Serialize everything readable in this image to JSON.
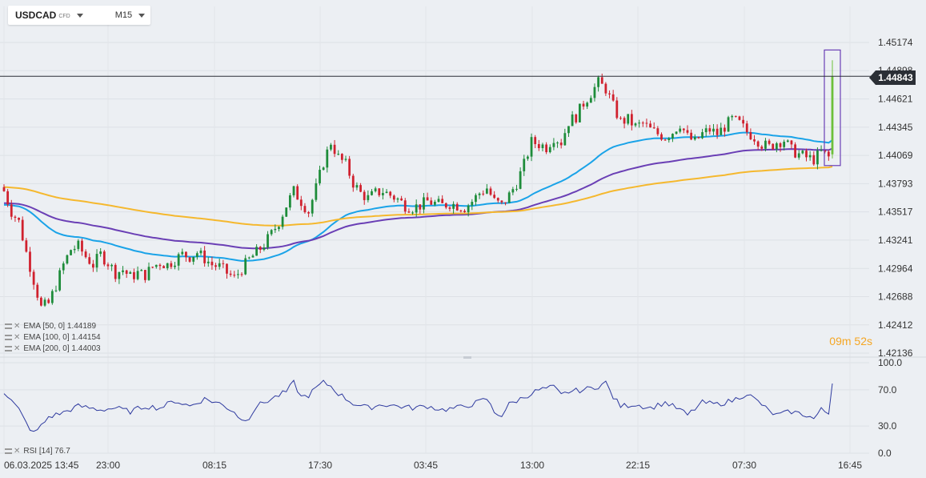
{
  "header": {
    "symbol": "USDCAD",
    "symbol_type": "CFD",
    "timeframe": "M15"
  },
  "current_price": "1.44843",
  "timer": {
    "minutes": "09",
    "m_label": "m",
    "seconds": "52",
    "s_label": "s"
  },
  "indicators": [
    {
      "label": "EMA [50, 0] 1.44189",
      "color": "#1aa3e8"
    },
    {
      "label": "EMA [100, 0] 1.44154",
      "color": "#6a3fb5"
    },
    {
      "label": "EMA [200, 0] 1.44003",
      "color": "#f5b82e"
    }
  ],
  "rsi_label": "RSI [14] 76.7",
  "colors": {
    "bull": "#1e8c3a",
    "bear": "#d0212e",
    "rsi": "#2e3a9f",
    "highlight": "#6a3fb5",
    "last_candle": "#6cc03a"
  },
  "chart_data": [
    {
      "type": "candlestick",
      "y_axis_ticks": [
        "1.45174",
        "1.44898",
        "1.44621",
        "1.44345",
        "1.44069",
        "1.43793",
        "1.43517",
        "1.43241",
        "1.42964",
        "1.42688",
        "1.42412",
        "1.42136"
      ],
      "ylim": [
        1.42136,
        1.45174
      ],
      "x_tick_labels": [
        "06.03.2025  13:45",
        "23:00",
        "08:15",
        "17:30",
        "03:45",
        "13:00",
        "22:15",
        "07:30",
        "16:45"
      ],
      "anchors": [
        [
          0,
          1.4372
        ],
        [
          2,
          1.4352
        ],
        [
          4,
          1.4342
        ],
        [
          6,
          1.4312
        ],
        [
          8,
          1.4285
        ],
        [
          10,
          1.4258
        ],
        [
          12,
          1.4262
        ],
        [
          14,
          1.428
        ],
        [
          16,
          1.43
        ],
        [
          18,
          1.4315
        ],
        [
          20,
          1.4318
        ],
        [
          22,
          1.4308
        ],
        [
          24,
          1.43
        ],
        [
          26,
          1.431
        ],
        [
          28,
          1.4302
        ],
        [
          30,
          1.4292
        ],
        [
          32,
          1.4295
        ],
        [
          34,
          1.4288
        ],
        [
          36,
          1.4292
        ],
        [
          38,
          1.429
        ],
        [
          40,
          1.4298
        ],
        [
          42,
          1.4302
        ],
        [
          44,
          1.43
        ],
        [
          46,
          1.4305
        ],
        [
          48,
          1.431
        ],
        [
          50,
          1.4308
        ],
        [
          52,
          1.4312
        ],
        [
          54,
          1.4306
        ],
        [
          56,
          1.43
        ],
        [
          58,
          1.4298
        ],
        [
          60,
          1.4292
        ],
        [
          62,
          1.4287
        ],
        [
          64,
          1.4296
        ],
        [
          66,
          1.4305
        ],
        [
          68,
          1.4312
        ],
        [
          70,
          1.432
        ],
        [
          72,
          1.433
        ],
        [
          74,
          1.4342
        ],
        [
          76,
          1.4358
        ],
        [
          78,
          1.4372
        ],
        [
          80,
          1.4362
        ],
        [
          82,
          1.4352
        ],
        [
          84,
          1.4375
        ],
        [
          86,
          1.44
        ],
        [
          88,
          1.442
        ],
        [
          90,
          1.4405
        ],
        [
          92,
          1.4398
        ],
        [
          94,
          1.438
        ],
        [
          96,
          1.437
        ],
        [
          98,
          1.4365
        ],
        [
          100,
          1.437
        ],
        [
          102,
          1.4372
        ],
        [
          104,
          1.4368
        ],
        [
          106,
          1.4364
        ],
        [
          108,
          1.4358
        ],
        [
          110,
          1.4356
        ],
        [
          112,
          1.4358
        ],
        [
          114,
          1.4362
        ],
        [
          116,
          1.436
        ],
        [
          118,
          1.4358
        ],
        [
          120,
          1.436
        ],
        [
          122,
          1.4358
        ],
        [
          124,
          1.4356
        ],
        [
          126,
          1.4362
        ],
        [
          128,
          1.437
        ],
        [
          130,
          1.4375
        ],
        [
          132,
          1.4362
        ],
        [
          134,
          1.4358
        ],
        [
          136,
          1.4368
        ],
        [
          138,
          1.438
        ],
        [
          140,
          1.4398
        ],
        [
          142,
          1.442
        ],
        [
          144,
          1.4418
        ],
        [
          146,
          1.4415
        ],
        [
          148,
          1.4425
        ],
        [
          150,
          1.442
        ],
        [
          152,
          1.444
        ],
        [
          154,
          1.4445
        ],
        [
          156,
          1.4458
        ],
        [
          158,
          1.4468
        ],
        [
          160,
          1.4478
        ],
        [
          162,
          1.4472
        ],
        [
          164,
          1.4455
        ],
        [
          166,
          1.444
        ],
        [
          168,
          1.4442
        ],
        [
          170,
          1.4435
        ],
        [
          172,
          1.4438
        ],
        [
          174,
          1.4432
        ],
        [
          176,
          1.4428
        ],
        [
          178,
          1.4425
        ],
        [
          180,
          1.443
        ],
        [
          182,
          1.4438
        ],
        [
          184,
          1.4425
        ],
        [
          186,
          1.442
        ],
        [
          188,
          1.4428
        ],
        [
          190,
          1.4432
        ],
        [
          192,
          1.4428
        ],
        [
          194,
          1.4435
        ],
        [
          196,
          1.4442
        ],
        [
          198,
          1.4438
        ],
        [
          200,
          1.443
        ],
        [
          202,
          1.4425
        ],
        [
          204,
          1.4418
        ],
        [
          206,
          1.4415
        ],
        [
          208,
          1.442
        ],
        [
          210,
          1.4422
        ],
        [
          212,
          1.4412
        ],
        [
          214,
          1.4408
        ],
        [
          216,
          1.4405
        ],
        [
          218,
          1.4403
        ],
        [
          220,
          1.441
        ],
        [
          222,
          1.4405
        ],
        [
          223,
          1.4482
        ]
      ]
    },
    {
      "type": "line",
      "title": "",
      "y_axis_ticks": [
        "100.0",
        "70.0",
        "30.0",
        "0.0"
      ],
      "ylim": [
        0,
        100
      ]
    }
  ]
}
